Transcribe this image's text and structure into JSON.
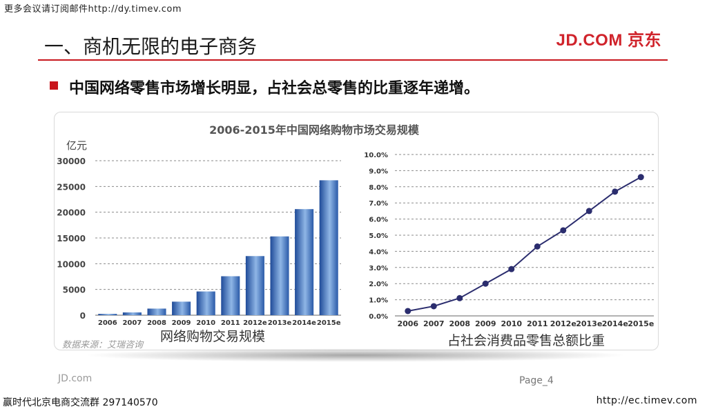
{
  "header": {
    "top_note": "更多会议请订阅邮件http://dy.timev.com",
    "slide_title": "一、商机无限的电子商务",
    "logo_text": "JD.COM 京东"
  },
  "bullet": {
    "text": "中国网络零售市场增长明显，占社会总零售的比重逐年递增。"
  },
  "panel": {
    "title": "2006-2015年中国网络购物市场交易规模",
    "source": "数据来源：艾瑞咨询"
  },
  "footer": {
    "left": "JD.com",
    "right": "Page_4",
    "bottom_left": "赢时代北京电商交流群 297140570",
    "bottom_right": "http://ec.timev.com"
  },
  "colors": {
    "accent_red": "#c8161d",
    "bar_dark": "#1e4a98",
    "bar_light": "#8fb6e6",
    "line": "#2b2d6e"
  },
  "chart_data": [
    {
      "type": "bar",
      "title": "2006-2015年中国网络购物市场交易规模",
      "ylabel": "亿元",
      "xlabel": "网络购物交易规模",
      "categories": [
        "2006",
        "2007",
        "2008",
        "2009",
        "2010",
        "2011",
        "2012e",
        "2013e",
        "2014e",
        "2015e"
      ],
      "values": [
        260,
        542,
        1281,
        2630,
        4610,
        7566,
        11480,
        15300,
        20600,
        26200
      ],
      "ylim": [
        0,
        30000
      ],
      "yticks": [
        0,
        5000,
        10000,
        15000,
        20000,
        25000,
        30000
      ],
      "grid": true
    },
    {
      "type": "line",
      "xlabel": "占社会消费品零售总额比重",
      "categories": [
        "2006",
        "2007",
        "2008",
        "2009",
        "2010",
        "2011",
        "2012e",
        "2013e",
        "2014e",
        "2015e"
      ],
      "values": [
        0.3,
        0.6,
        1.1,
        2.0,
        2.9,
        4.3,
        5.3,
        6.5,
        7.7,
        8.6
      ],
      "ylim": [
        0,
        10
      ],
      "yticks": [
        "0.0%",
        "1.0%",
        "2.0%",
        "3.0%",
        "4.0%",
        "5.0%",
        "6.0%",
        "7.0%",
        "8.0%",
        "9.0%",
        "10.0%"
      ],
      "grid": true
    }
  ]
}
